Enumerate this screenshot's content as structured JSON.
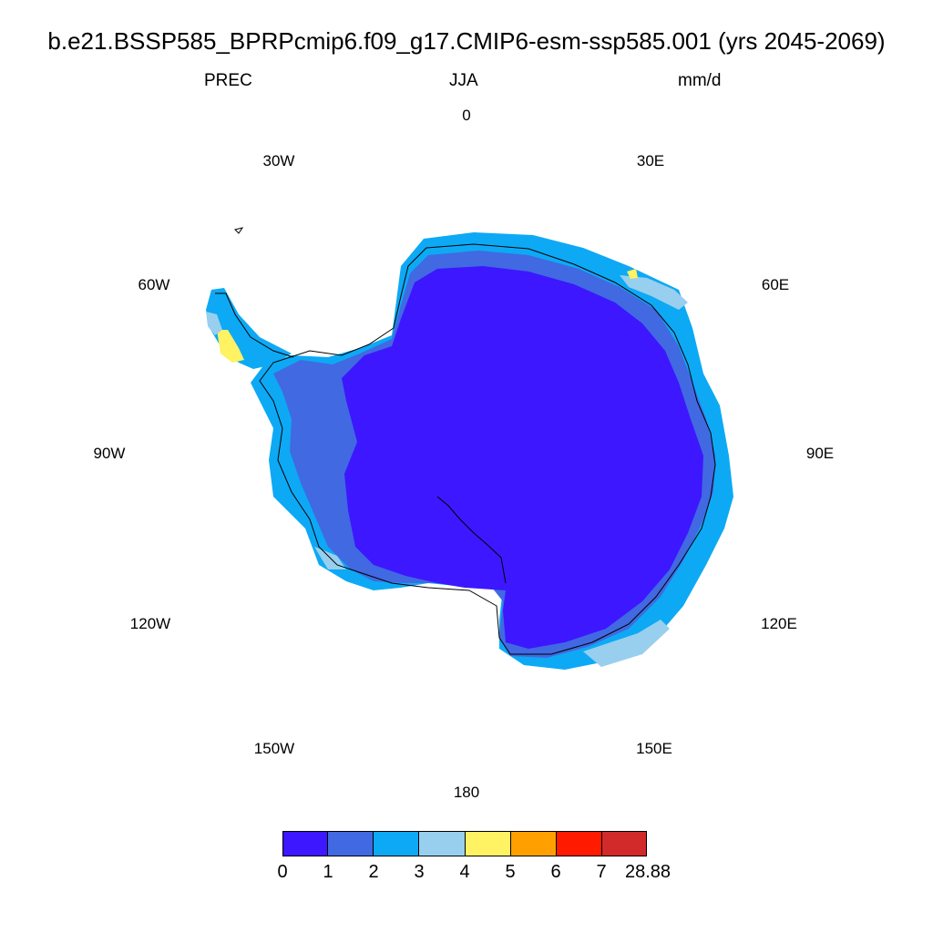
{
  "title": "b.e21.BSSP585_BPRPcmip6.f09_g17.CMIP6-esm-ssp585.001 (yrs 2045-2069)",
  "subtitle": {
    "left": "PREC",
    "center": "JJA",
    "right": "mm/d"
  },
  "longitude_labels": [
    "0",
    "30E",
    "60E",
    "90E",
    "120E",
    "150E",
    "180",
    "150W",
    "120W",
    "90W",
    "60W",
    "30W"
  ],
  "colorbar": {
    "colors": [
      "#3c17ff",
      "#4169e1",
      "#0da9f5",
      "#99cfee",
      "#fff263",
      "#ffa000",
      "#ff1a00",
      "#d22a2a"
    ],
    "labels": [
      "0",
      "1",
      "2",
      "3",
      "4",
      "5",
      "6",
      "7",
      "28.88"
    ]
  }
}
